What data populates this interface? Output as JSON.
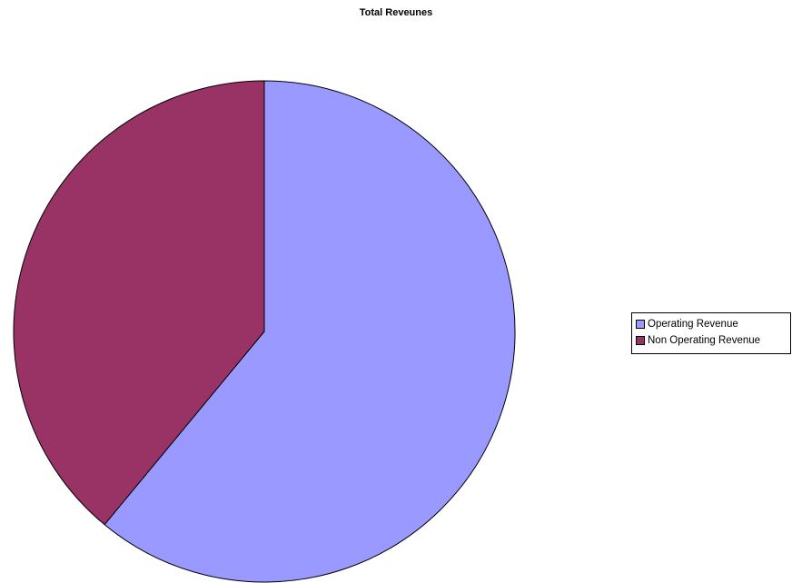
{
  "chart_data": {
    "type": "pie",
    "title": "Total Reveunes",
    "categories": [
      "Operating Revenue",
      "Non Operating Revenue"
    ],
    "values": [
      61,
      39
    ],
    "colors": [
      "#9999FF",
      "#993366"
    ],
    "start_angle": "top, clockwise",
    "legend_position": "right"
  }
}
